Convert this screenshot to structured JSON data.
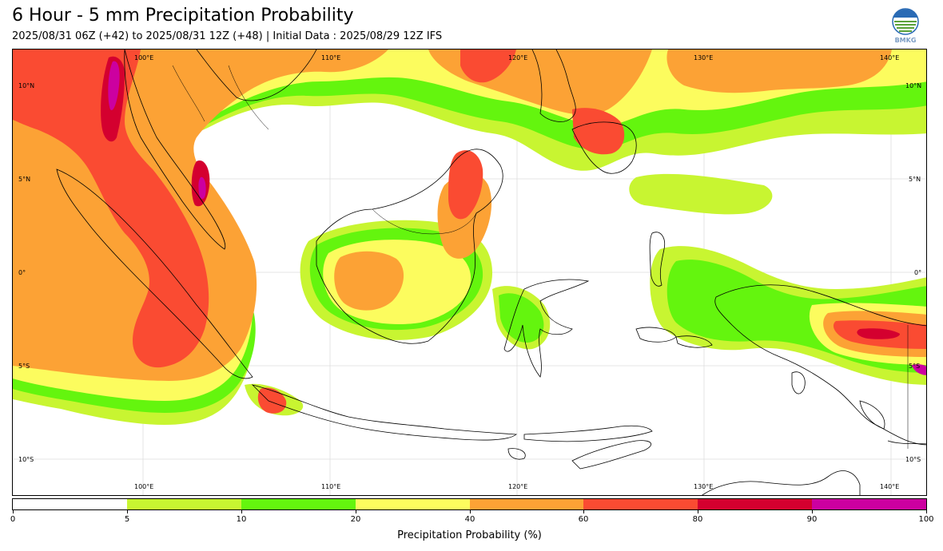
{
  "header": {
    "title": "6 Hour - 5 mm Precipitation Probability",
    "subtitle": "2025/08/31 06Z (+42) to 2025/08/31 12Z (+48) | Initial Data : 2025/08/29 12Z IFS",
    "logo_text": "BMKG"
  },
  "map": {
    "lon_top_labels": [
      "100°E",
      "110°E",
      "120°E",
      "130°E",
      "140°E"
    ],
    "lon_bottom_labels": [
      "100°E",
      "110°E",
      "120°E",
      "130°E",
      "140°E"
    ],
    "lat_left_labels": [
      "10°N",
      "5°N",
      "0°",
      "5°S",
      "10°S"
    ],
    "lat_right_labels": [
      "10°N",
      "5°N",
      "0°",
      "5°S",
      "10°S"
    ],
    "extent": {
      "lon_min": 93,
      "lon_max": 142,
      "lat_min": -12,
      "lat_max": 12
    },
    "colors": {
      "land_outline": "#000000",
      "ocean": "#ffffff",
      "gridline": "#dddddd"
    }
  },
  "colorbar": {
    "title": "Precipitation Probability (%)",
    "bounds": [
      0,
      5,
      10,
      20,
      40,
      60,
      80,
      90,
      100
    ],
    "tick_labels": [
      "0",
      "5",
      "10",
      "20",
      "40",
      "60",
      "80",
      "90",
      "100"
    ],
    "colors": [
      "#ffffff",
      "#c8f531",
      "#64f50e",
      "#fcfc5e",
      "#fca235",
      "#fa4b32",
      "#d4002f",
      "#cc00a0"
    ]
  }
}
